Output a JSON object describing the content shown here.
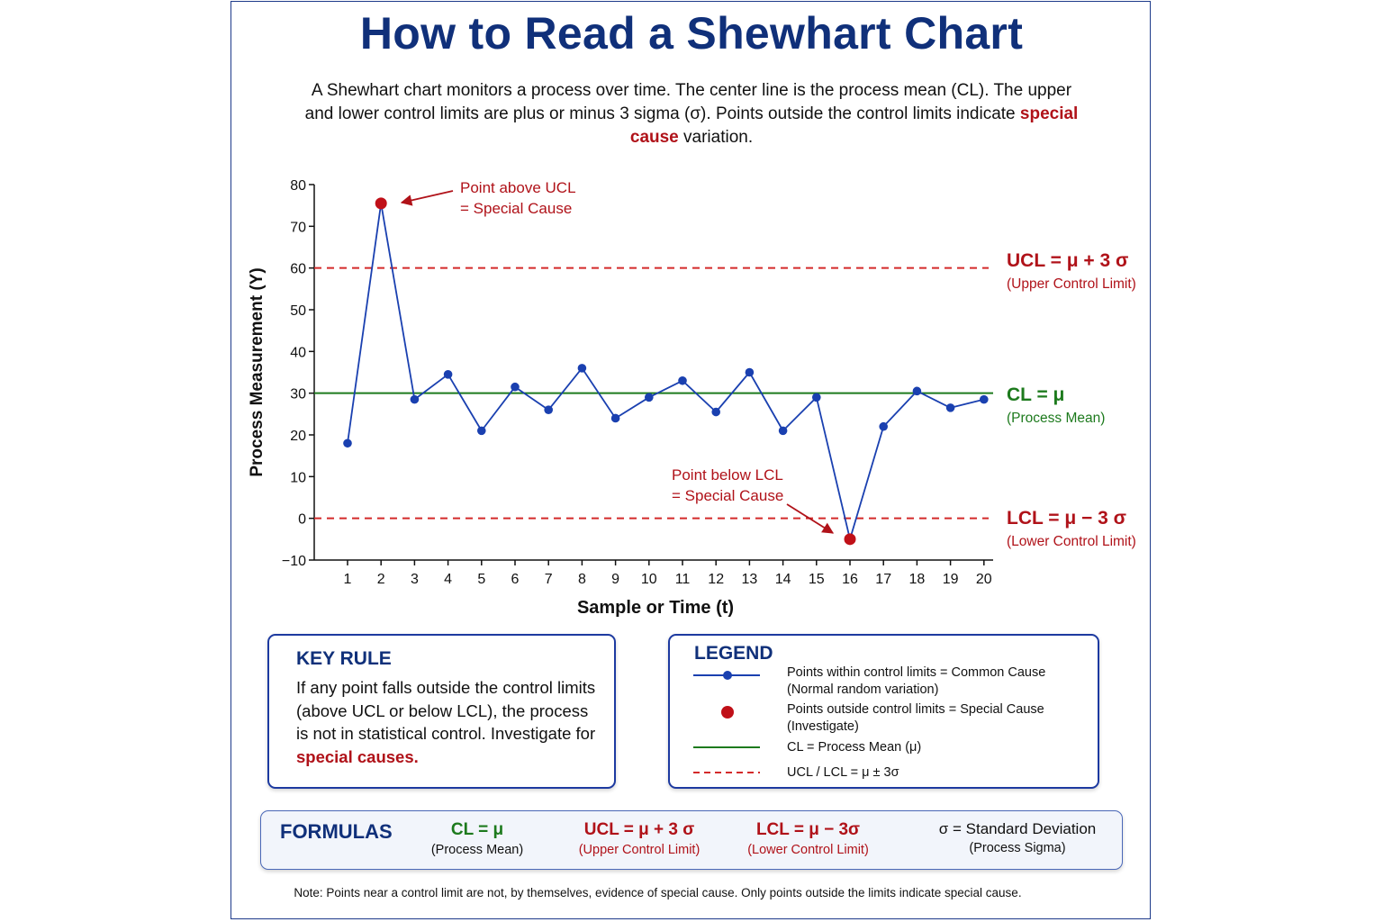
{
  "title": "How to Read a Shewhart Chart",
  "intro": {
    "part1": "A Shewhart chart monitors a process over time. The center line is the process mean (CL). The upper and lower control limits are plus or minus 3 sigma (σ). Points outside the control limits indicate ",
    "highlight": "special cause",
    "part2": " variation."
  },
  "chart_data": {
    "type": "line",
    "ylabel": "Process Measurement (Y)",
    "xlabel": "Sample or Time (t)",
    "ylim": [
      -10,
      80
    ],
    "yticks": [
      -10,
      0,
      10,
      20,
      30,
      40,
      50,
      60,
      70,
      80
    ],
    "x": [
      1,
      2,
      3,
      4,
      5,
      6,
      7,
      8,
      9,
      10,
      11,
      12,
      13,
      14,
      15,
      16,
      17,
      18,
      19,
      20
    ],
    "series": [
      {
        "values": [
          18,
          75.5,
          28.5,
          34.5,
          21,
          31.5,
          26,
          36,
          24,
          29,
          33,
          25.5,
          35,
          21,
          29,
          -5,
          22,
          30.5,
          26.5,
          28.5
        ]
      }
    ],
    "out_of_control_points": [
      2,
      16
    ],
    "center_line": 30,
    "ucl": 60,
    "lcl": 0,
    "line_labels": {
      "ucl": {
        "label": "UCL =  μ + 3 σ",
        "sub": "(Upper Control Limit)"
      },
      "cl": {
        "label": "CL =  μ",
        "sub": "(Process Mean)"
      },
      "lcl": {
        "label": "LCL =  μ − 3 σ",
        "sub": "(Lower Control Limit)"
      }
    },
    "annotations": [
      {
        "point": 2,
        "lines": [
          "Point above UCL",
          "= Special Cause"
        ]
      },
      {
        "point": 16,
        "lines": [
          "Point below LCL",
          "= Special Cause"
        ]
      }
    ],
    "colors": {
      "series": "#1a40b0",
      "special": "#c01018",
      "cl": "#1d7a1d",
      "limits": "#d42a2a",
      "red_text": "#b01219",
      "green_text": "#1d7a1d"
    },
    "grid": false
  },
  "key_rule": {
    "heading": "KEY RULE",
    "text": "If any point falls outside the control limits (above UCL or below LCL), the process is not in statistical control. Investigate for ",
    "highlight": "special causes."
  },
  "legend": {
    "heading": "LEGEND",
    "items": [
      {
        "symbol": "blue-line-dot",
        "line1": "Points within control limits  =  Common Cause",
        "line2": "(Normal random variation)"
      },
      {
        "symbol": "red-dot",
        "line1": "Points outside control limits  =  Special Cause",
        "line2": "(Investigate)"
      },
      {
        "symbol": "green-line",
        "line1": "CL  =  Process Mean (μ)",
        "line2": ""
      },
      {
        "symbol": "red-dashed-line",
        "line1": "UCL / LCL = μ ± 3σ",
        "line2": ""
      }
    ]
  },
  "formulas": {
    "heading": "FORMULAS",
    "items": [
      {
        "main": "CL =  μ",
        "sub": "(Process Mean)",
        "color": "#1d7a1d"
      },
      {
        "main": "UCL =  μ + 3 σ",
        "sub": "(Upper Control Limit)",
        "color": "#b01219"
      },
      {
        "main": "LCL =  μ − 3σ",
        "sub": "(Lower Control Limit)",
        "color": "#b01219"
      },
      {
        "main": "σ  =  Standard Deviation",
        "sub": "(Process Sigma)",
        "color": "#111111"
      }
    ]
  },
  "note": "Note: Points near a control limit are not, by themselves, evidence of special cause. Only points outside the limits indicate special cause."
}
